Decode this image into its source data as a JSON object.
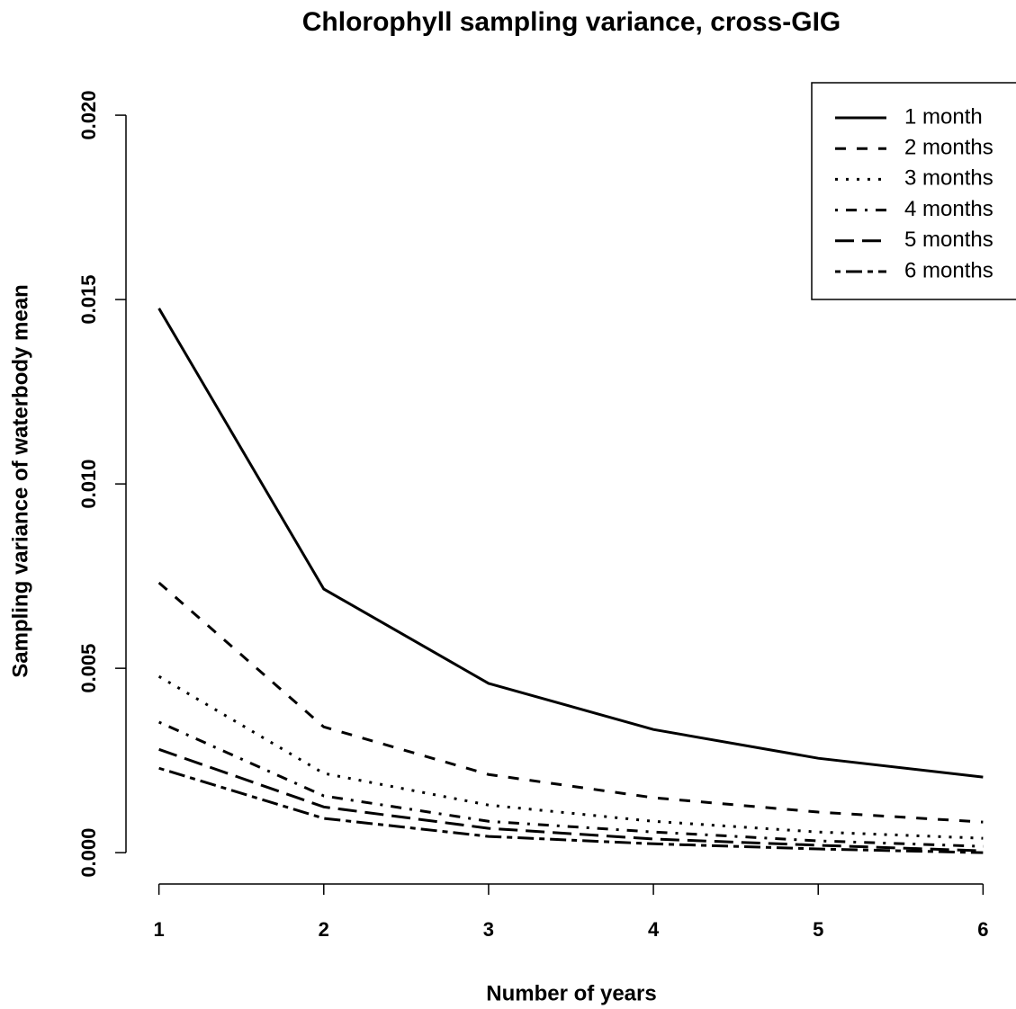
{
  "chart_data": {
    "type": "line",
    "title": "Chlorophyll sampling variance, cross-GIG",
    "x_label": "Number of years",
    "y_label": "Sampling variance of waterbody mean",
    "x": [
      1,
      2,
      3,
      4,
      5,
      6
    ],
    "xlim": [
      0.8,
      6.2
    ],
    "xticks": [
      1,
      2,
      3,
      4,
      5,
      6
    ],
    "ylim": [
      -0.00085,
      0.02088
    ],
    "yticks": [
      {
        "value": 0,
        "label": "0.000"
      },
      {
        "value": 0.005,
        "label": "0.005"
      },
      {
        "value": 0.01,
        "label": "0.010"
      },
      {
        "value": 0.015,
        "label": "0.015"
      },
      {
        "value": 0.02,
        "label": "0.020"
      }
    ],
    "legend_position": "top-right",
    "series": [
      {
        "name": "1 month",
        "color": "#000000",
        "dash": "none",
        "values": [
          0.01476,
          0.00715,
          0.00459,
          0.00334,
          0.00256,
          0.00205
        ]
      },
      {
        "name": "2 months",
        "color": "#000000",
        "dash": "12 12",
        "values": [
          0.00732,
          0.00341,
          0.00212,
          0.00149,
          0.0011,
          0.00083
        ]
      },
      {
        "name": "3 months",
        "color": "#000000",
        "dash": "3 9",
        "values": [
          0.00478,
          0.00215,
          0.00129,
          0.00085,
          0.00056,
          0.00039
        ]
      },
      {
        "name": "4 months",
        "color": "#000000",
        "dash": "3 9 12 9",
        "values": [
          0.00354,
          0.00154,
          0.00085,
          0.00056,
          0.00032,
          0.00017
        ]
      },
      {
        "name": "5 months",
        "color": "#000000",
        "dash": "21 9",
        "values": [
          0.0028,
          0.00124,
          0.00066,
          0.00037,
          0.0002,
          5e-05
        ]
      },
      {
        "name": "6 months",
        "color": "#000000",
        "dash": "6 6 18 6",
        "values": [
          0.00229,
          0.00093,
          0.00044,
          0.00024,
          0.0001,
          0
        ]
      }
    ]
  }
}
